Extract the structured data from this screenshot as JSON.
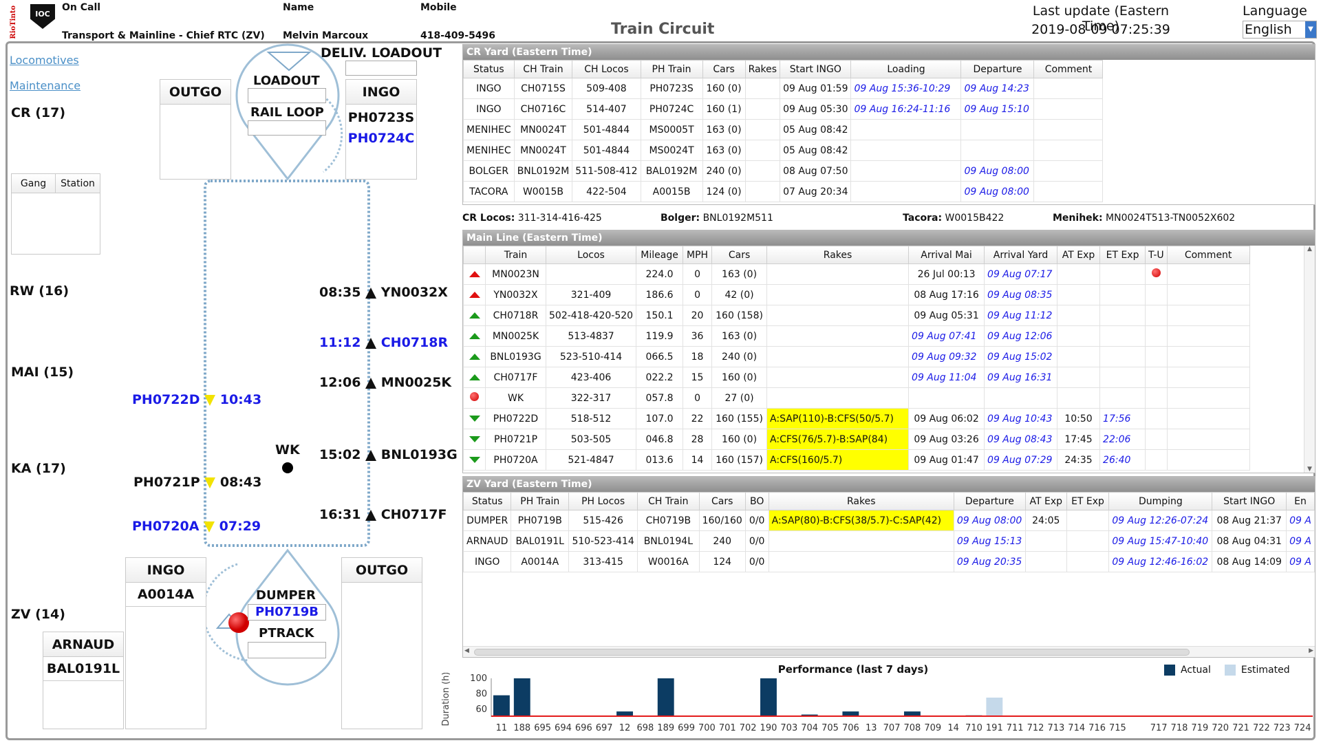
{
  "header": {
    "brand_text": "RioTinto",
    "logo_text": "IOC",
    "oncall_label": "On Call",
    "oncall_value": "Transport & Mainline - Chief RTC (ZV)",
    "name_label": "Name",
    "name_value": "Melvin Marcoux",
    "mobile_label": "Mobile",
    "mobile_value": "418-409-5496",
    "title": "Train Circuit",
    "last_update_label": "Last update (Eastern Time)",
    "last_update_value": "2019-08-09 07:25:39",
    "language_label": "Language",
    "language_value": "English"
  },
  "left": {
    "links": [
      "Locomotives",
      "Maintenance"
    ],
    "cr_label": "CR (17)",
    "rw_label": "RW (16)",
    "mai_label": "MAI (15)",
    "ka_label": "KA (17)",
    "zv_label": "ZV (14)",
    "deliv_loadout": "DELIV. LOADOUT",
    "loadout": "LOADOUT",
    "rail_loop": "RAIL LOOP",
    "cr_outgo": "OUTGO",
    "cr_ingo": "INGO",
    "cr_ingo_items": [
      "PH0723S",
      "PH0724C"
    ],
    "gang_cols": [
      "Gang",
      "Station"
    ],
    "northbound": [
      {
        "time": "08:35",
        "train": "YN0032X",
        "blue": false
      },
      {
        "time": "11:12",
        "train": "CH0718R",
        "blue": true
      },
      {
        "time": "12:06",
        "train": "MN0025K",
        "blue": false
      },
      {
        "time": "15:02",
        "train": "BNL0193G",
        "blue": false
      },
      {
        "time": "16:31",
        "train": "CH0717F",
        "blue": false
      }
    ],
    "southbound": [
      {
        "time": "10:43",
        "train": "PH0722D",
        "blue": true
      },
      {
        "time": "08:43",
        "train": "PH0721P",
        "blue": false
      },
      {
        "time": "07:29",
        "train": "PH0720A",
        "blue": true
      }
    ],
    "wk_label": "WK",
    "zv_ingo": "INGO",
    "zv_ingo_items": [
      "A0014A"
    ],
    "zv_outgo": "OUTGO",
    "arnaud": "ARNAUD",
    "arnaud_items": [
      "BAL0191L"
    ],
    "dumper": "DUMPER",
    "dumper_train": "PH0719B",
    "ptrack": "PTRACK"
  },
  "cr_yard": {
    "title": "CR Yard (Eastern Time)",
    "columns": [
      "Status",
      "CH Train",
      "CH Locos",
      "PH Train",
      "Cars",
      "Rakes",
      "Start INGO",
      "Loading",
      "Departure",
      "Comment"
    ],
    "rows": [
      [
        "INGO",
        "CH0715S",
        "509-408",
        "PH0723S",
        "160 (0)",
        "",
        "09 Aug 01:59",
        "09 Aug 15:36-10:29",
        "09 Aug 14:23",
        ""
      ],
      [
        "INGO",
        "CH0716C",
        "514-407",
        "PH0724C",
        "160 (1)",
        "",
        "09 Aug 05:30",
        "09 Aug 16:24-11:16",
        "09 Aug 15:10",
        ""
      ],
      [
        "MENIHEC",
        "MN0024T",
        "501-4844",
        "MS0005T",
        "163 (0)",
        "",
        "05 Aug 08:42",
        "",
        "",
        ""
      ],
      [
        "MENIHEC",
        "MN0024T",
        "501-4844",
        "MS0024T",
        "163 (0)",
        "",
        "05 Aug 08:42",
        "",
        "",
        ""
      ],
      [
        "BOLGER",
        "BNL0192M",
        "511-508-412",
        "BAL0192M",
        "240 (0)",
        "",
        "08 Aug 07:50",
        "",
        "09 Aug 08:00",
        ""
      ],
      [
        "TACORA",
        "W0015B",
        "422-504",
        "A0015B",
        "124 (0)",
        "",
        "07 Aug 20:34",
        "",
        "09 Aug 08:00",
        ""
      ]
    ],
    "info": [
      {
        "label": "CR Locos:",
        "value": "311-314-416-425"
      },
      {
        "label": "Bolger:",
        "value": "BNL0192M511"
      },
      {
        "label": "Tacora:",
        "value": "W0015B422"
      },
      {
        "label": "Menihek:",
        "value": "MN0024T513-TN0052X602"
      }
    ]
  },
  "main_line": {
    "title": "Main Line (Eastern Time)",
    "columns": [
      "",
      "Train",
      "Locos",
      "Mileage",
      "MPH",
      "Cars",
      "Rakes",
      "Arrival Mai",
      "Arrival Yard",
      "AT Exp",
      "ET Exp",
      "T-U",
      "Comment"
    ],
    "rows": [
      {
        "dir": "up-red",
        "train": "MN0023N",
        "locos": "",
        "mileage": "224.0",
        "mph": "0",
        "cars": "163 (0)",
        "rakes": "",
        "arr_mai": "26 Jul 00:13",
        "arr_mai_it": false,
        "arr_yard": "09 Aug 07:17",
        "at": "",
        "et": "",
        "tu": true
      },
      {
        "dir": "up-red",
        "train": "YN0032X",
        "locos": "321-409",
        "mileage": "186.6",
        "mph": "0",
        "cars": "42 (0)",
        "rakes": "",
        "arr_mai": "08 Aug 17:16",
        "arr_mai_it": false,
        "arr_yard": "09 Aug 08:35",
        "at": "",
        "et": "",
        "tu": false
      },
      {
        "dir": "up-green",
        "train": "CH0718R",
        "locos": "502-418-420-520",
        "mileage": "150.1",
        "mph": "20",
        "cars": "160 (158)",
        "rakes": "",
        "arr_mai": "09 Aug 05:31",
        "arr_mai_it": false,
        "arr_yard": "09 Aug 11:12",
        "at": "",
        "et": "",
        "tu": false
      },
      {
        "dir": "up-green",
        "train": "MN0025K",
        "locos": "513-4837",
        "mileage": "119.9",
        "mph": "36",
        "cars": "163 (0)",
        "rakes": "",
        "arr_mai": "09 Aug 07:41",
        "arr_mai_it": true,
        "arr_yard": "09 Aug 12:06",
        "at": "",
        "et": "",
        "tu": false
      },
      {
        "dir": "up-green",
        "train": "BNL0193G",
        "locos": "523-510-414",
        "mileage": "066.5",
        "mph": "18",
        "cars": "240 (0)",
        "rakes": "",
        "arr_mai": "09 Aug 09:32",
        "arr_mai_it": true,
        "arr_yard": "09 Aug 15:02",
        "at": "",
        "et": "",
        "tu": false
      },
      {
        "dir": "up-green",
        "train": "CH0717F",
        "locos": "423-406",
        "mileage": "022.2",
        "mph": "15",
        "cars": "160 (0)",
        "rakes": "",
        "arr_mai": "09 Aug 11:04",
        "arr_mai_it": true,
        "arr_yard": "09 Aug 16:31",
        "at": "",
        "et": "",
        "tu": false
      },
      {
        "dir": "stop",
        "train": "WK",
        "locos": "322-317",
        "mileage": "057.8",
        "mph": "0",
        "cars": "27 (0)",
        "rakes": "",
        "arr_mai": "",
        "arr_mai_it": false,
        "arr_yard": "",
        "at": "",
        "et": "",
        "tu": false
      },
      {
        "dir": "down-green",
        "train": "PH0722D",
        "locos": "518-512",
        "mileage": "107.0",
        "mph": "22",
        "cars": "160 (155)",
        "rakes": "A:SAP(110)-B:CFS(50/5.7)",
        "arr_mai": "09 Aug 06:02",
        "arr_mai_it": false,
        "arr_yard": "09 Aug 10:43",
        "at": "10:50",
        "et": "17:56",
        "tu": false
      },
      {
        "dir": "down-green",
        "train": "PH0721P",
        "locos": "503-505",
        "mileage": "046.8",
        "mph": "28",
        "cars": "160 (0)",
        "rakes": "A:CFS(76/5.7)-B:SAP(84)",
        "arr_mai": "09 Aug 03:26",
        "arr_mai_it": false,
        "arr_yard": "09 Aug 08:43",
        "at": "17:45",
        "et": "22:06",
        "tu": false
      },
      {
        "dir": "down-green",
        "train": "PH0720A",
        "locos": "521-4847",
        "mileage": "013.6",
        "mph": "14",
        "cars": "160 (157)",
        "rakes": "A:CFS(160/5.7)",
        "arr_mai": "09 Aug 01:47",
        "arr_mai_it": false,
        "arr_yard": "09 Aug 07:29",
        "at": "24:35",
        "et": "26:40",
        "tu": false
      }
    ]
  },
  "zv_yard": {
    "title": "ZV Yard (Eastern Time)",
    "columns": [
      "Status",
      "PH Train",
      "PH Locos",
      "CH Train",
      "Cars",
      "BO",
      "Rakes",
      "Departure",
      "AT Exp",
      "ET Exp",
      "Dumping",
      "Start INGO",
      "En"
    ],
    "rows": [
      [
        "DUMPER",
        "PH0719B",
        "515-426",
        "CH0719B",
        "160/160",
        "0/0",
        "A:SAP(80)-B:CFS(38/5.7)-C:SAP(42)",
        "09 Aug 08:00",
        "24:05",
        "",
        "09 Aug 12:26-07:24",
        "08 Aug 21:37",
        "09 A"
      ],
      [
        "ARNAUD",
        "BAL0191L",
        "510-523-414",
        "BNL0194L",
        "240",
        "0/0",
        "",
        "09 Aug 15:13",
        "",
        "",
        "09 Aug 15:47-10:40",
        "08 Aug 04:31",
        "09 A"
      ],
      [
        "INGO",
        "A0014A",
        "313-415",
        "W0016A",
        "124",
        "0/0",
        "",
        "09 Aug 20:35",
        "",
        "",
        "09 Aug 12:46-16:02",
        "08 Aug 14:09",
        "09 A"
      ]
    ]
  },
  "performance": {
    "title": "Performance (last 7 days)",
    "legend": [
      "Actual",
      "Estimated"
    ],
    "colors": {
      "actual": "#0c3c63",
      "estimated": "#c5d9ea",
      "limit": "#e31b1b"
    }
  },
  "chart_data": {
    "type": "bar",
    "title": "Performance (last 7 days)",
    "ylabel": "Duration (h)",
    "ylim": [
      50,
      100
    ],
    "yticks": [
      60,
      80,
      100
    ],
    "categories": [
      "11",
      "188",
      "695",
      "694",
      "696",
      "697",
      "12",
      "698",
      "189",
      "699",
      "700",
      "701",
      "702",
      "190",
      "703",
      "704",
      "705",
      "706",
      "13",
      "707",
      "708",
      "709",
      "14",
      "710",
      "191",
      "711",
      "712",
      "713",
      "714",
      "716",
      "715",
      "",
      "717",
      "718",
      "719",
      "720",
      "721",
      "722",
      "723",
      "724"
    ],
    "series": [
      {
        "name": "Actual",
        "values": [
          78,
          100,
          null,
          null,
          null,
          null,
          57,
          null,
          100,
          null,
          null,
          null,
          null,
          100,
          null,
          53,
          null,
          57,
          51,
          null,
          57,
          null,
          null,
          52,
          null,
          null,
          null,
          null,
          null,
          null,
          null,
          null,
          null,
          null,
          null,
          null,
          null,
          null,
          null,
          null
        ]
      },
      {
        "name": "Estimated",
        "values": [
          null,
          null,
          null,
          null,
          null,
          null,
          null,
          null,
          null,
          null,
          null,
          null,
          null,
          null,
          null,
          null,
          null,
          null,
          null,
          null,
          null,
          null,
          null,
          null,
          75,
          null,
          null,
          null,
          null,
          null,
          null,
          null,
          null,
          null,
          null,
          null,
          null,
          null,
          null,
          null
        ]
      }
    ],
    "limit_line": 50
  }
}
